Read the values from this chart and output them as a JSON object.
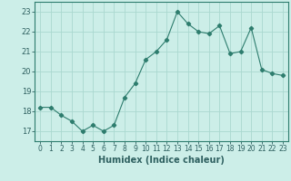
{
  "title": "",
  "xlabel": "Humidex (Indice chaleur)",
  "ylabel": "",
  "x": [
    0,
    1,
    2,
    3,
    4,
    5,
    6,
    7,
    8,
    9,
    10,
    11,
    12,
    13,
    14,
    15,
    16,
    17,
    18,
    19,
    20,
    21,
    22,
    23
  ],
  "y": [
    18.2,
    18.2,
    17.8,
    17.5,
    17.0,
    17.3,
    17.0,
    17.3,
    18.7,
    19.4,
    20.6,
    21.0,
    21.6,
    23.0,
    22.4,
    22.0,
    21.9,
    22.3,
    20.9,
    21.0,
    22.2,
    20.1,
    19.9,
    19.8
  ],
  "line_color": "#2e7d6e",
  "marker": "D",
  "marker_size": 2.2,
  "bg_color": "#cceee8",
  "grid_color": "#aad8d0",
  "ylim": [
    16.5,
    23.5
  ],
  "yticks": [
    17,
    18,
    19,
    20,
    21,
    22,
    23
  ],
  "xlim": [
    -0.5,
    23.5
  ],
  "xticks": [
    0,
    1,
    2,
    3,
    4,
    5,
    6,
    7,
    8,
    9,
    10,
    11,
    12,
    13,
    14,
    15,
    16,
    17,
    18,
    19,
    20,
    21,
    22,
    23
  ],
  "tick_color": "#2e6060",
  "label_color": "#2e6060",
  "spine_color": "#2e7d6e",
  "tick_fontsize": 5.5,
  "xlabel_fontsize": 7.0
}
